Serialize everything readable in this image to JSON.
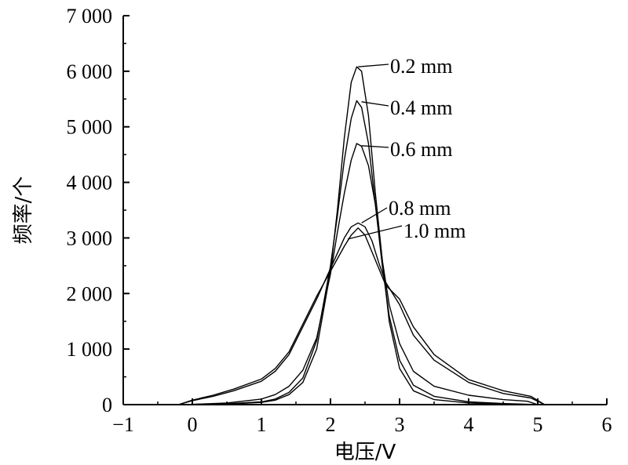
{
  "chart_data": {
    "type": "line",
    "title": "",
    "xlabel": "电压/V",
    "ylabel": "频率/个",
    "xlim": [
      -1,
      6
    ],
    "ylim": [
      0,
      7000
    ],
    "x_ticks": [
      -1,
      0,
      1,
      2,
      3,
      4,
      5,
      6
    ],
    "x_tick_labels": [
      "−1",
      "0",
      "1",
      "2",
      "3",
      "4",
      "5",
      "6"
    ],
    "y_ticks": [
      0,
      1000,
      2000,
      3000,
      4000,
      5000,
      6000,
      7000
    ],
    "y_tick_labels": [
      "0",
      "1 000",
      "2 000",
      "3 000",
      "4 000",
      "5 000",
      "6 000",
      "7 000"
    ],
    "grid": false,
    "legend": "inline labels",
    "series": [
      {
        "name": "0.2 mm",
        "color": "#000000",
        "points": [
          [
            0.0,
            0
          ],
          [
            0.5,
            10
          ],
          [
            1.0,
            40
          ],
          [
            1.2,
            80
          ],
          [
            1.4,
            180
          ],
          [
            1.6,
            400
          ],
          [
            1.8,
            1000
          ],
          [
            2.0,
            2400
          ],
          [
            2.1,
            3500
          ],
          [
            2.2,
            4800
          ],
          [
            2.3,
            5800
          ],
          [
            2.38,
            6080
          ],
          [
            2.45,
            6000
          ],
          [
            2.55,
            5200
          ],
          [
            2.65,
            3800
          ],
          [
            2.75,
            2600
          ],
          [
            2.85,
            1500
          ],
          [
            3.0,
            650
          ],
          [
            3.2,
            250
          ],
          [
            3.5,
            90
          ],
          [
            4.0,
            30
          ],
          [
            4.5,
            10
          ],
          [
            5.0,
            0
          ]
        ]
      },
      {
        "name": "0.4 mm",
        "color": "#000000",
        "points": [
          [
            0.0,
            0
          ],
          [
            0.5,
            15
          ],
          [
            1.0,
            50
          ],
          [
            1.2,
            100
          ],
          [
            1.4,
            220
          ],
          [
            1.6,
            480
          ],
          [
            1.8,
            1150
          ],
          [
            2.0,
            2500
          ],
          [
            2.1,
            3400
          ],
          [
            2.2,
            4400
          ],
          [
            2.3,
            5150
          ],
          [
            2.38,
            5470
          ],
          [
            2.45,
            5350
          ],
          [
            2.55,
            4700
          ],
          [
            2.65,
            3600
          ],
          [
            2.75,
            2500
          ],
          [
            2.85,
            1600
          ],
          [
            3.0,
            800
          ],
          [
            3.2,
            350
          ],
          [
            3.5,
            150
          ],
          [
            4.0,
            50
          ],
          [
            4.5,
            20
          ],
          [
            5.0,
            0
          ]
        ]
      },
      {
        "name": "0.6 mm",
        "color": "#000000",
        "points": [
          [
            -0.1,
            0
          ],
          [
            0.5,
            30
          ],
          [
            1.0,
            100
          ],
          [
            1.2,
            180
          ],
          [
            1.4,
            330
          ],
          [
            1.6,
            620
          ],
          [
            1.8,
            1200
          ],
          [
            2.0,
            2350
          ],
          [
            2.1,
            3100
          ],
          [
            2.2,
            3800
          ],
          [
            2.3,
            4400
          ],
          [
            2.38,
            4700
          ],
          [
            2.45,
            4650
          ],
          [
            2.55,
            4300
          ],
          [
            2.65,
            3600
          ],
          [
            2.75,
            2600
          ],
          [
            2.85,
            1800
          ],
          [
            3.0,
            1100
          ],
          [
            3.2,
            600
          ],
          [
            3.5,
            330
          ],
          [
            4.0,
            170
          ],
          [
            4.5,
            90
          ],
          [
            4.85,
            60
          ],
          [
            5.0,
            0
          ]
        ]
      },
      {
        "name": "0.8 mm",
        "color": "#000000",
        "points": [
          [
            -0.2,
            0
          ],
          [
            0.0,
            70
          ],
          [
            0.3,
            150
          ],
          [
            0.6,
            250
          ],
          [
            1.0,
            420
          ],
          [
            1.2,
            600
          ],
          [
            1.4,
            900
          ],
          [
            1.6,
            1400
          ],
          [
            1.8,
            1900
          ],
          [
            2.0,
            2450
          ],
          [
            2.2,
            3000
          ],
          [
            2.3,
            3200
          ],
          [
            2.4,
            3270
          ],
          [
            2.5,
            3200
          ],
          [
            2.6,
            2950
          ],
          [
            2.7,
            2550
          ],
          [
            2.8,
            2200
          ],
          [
            3.0,
            1800
          ],
          [
            3.2,
            1250
          ],
          [
            3.5,
            800
          ],
          [
            4.0,
            400
          ],
          [
            4.5,
            200
          ],
          [
            4.9,
            120
          ],
          [
            5.1,
            0
          ]
        ]
      },
      {
        "name": "1.0 mm",
        "color": "#000000",
        "points": [
          [
            -0.2,
            0
          ],
          [
            0.0,
            80
          ],
          [
            0.3,
            170
          ],
          [
            0.6,
            280
          ],
          [
            1.0,
            460
          ],
          [
            1.2,
            650
          ],
          [
            1.4,
            950
          ],
          [
            1.6,
            1450
          ],
          [
            1.8,
            1950
          ],
          [
            2.0,
            2400
          ],
          [
            2.2,
            2850
          ],
          [
            2.3,
            3050
          ],
          [
            2.4,
            3180
          ],
          [
            2.5,
            3050
          ],
          [
            2.6,
            2750
          ],
          [
            2.7,
            2450
          ],
          [
            2.8,
            2150
          ],
          [
            3.0,
            1900
          ],
          [
            3.2,
            1400
          ],
          [
            3.5,
            900
          ],
          [
            4.0,
            450
          ],
          [
            4.5,
            250
          ],
          [
            4.9,
            150
          ],
          [
            5.1,
            0
          ]
        ]
      }
    ],
    "annotations": [
      {
        "text": "0.2 mm",
        "x_data": 2.4,
        "y_data": 6080
      },
      {
        "text": "0.4 mm",
        "x_data": 2.45,
        "y_data": 5450
      },
      {
        "text": "0.6 mm",
        "x_data": 2.45,
        "y_data": 4660
      },
      {
        "text": "0.8 mm",
        "x_data": 2.45,
        "y_data": 3270
      },
      {
        "text": "1.0 mm",
        "x_data": 2.25,
        "y_data": 2980
      }
    ]
  }
}
